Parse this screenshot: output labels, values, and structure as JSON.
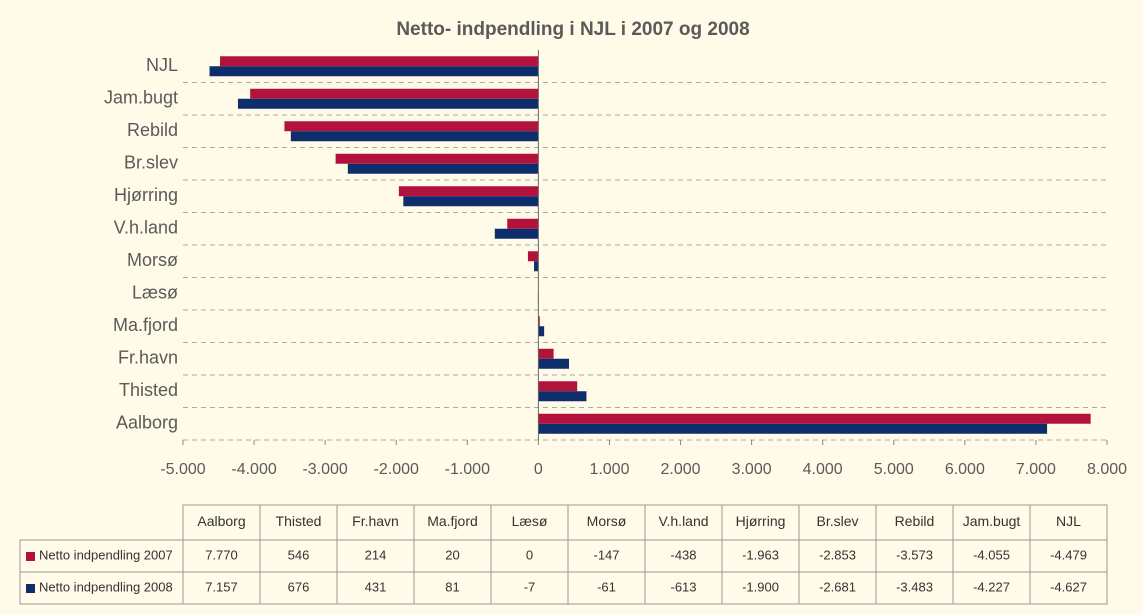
{
  "chart_data": {
    "type": "bar",
    "orientation": "horizontal",
    "title": "Netto- indpendling i NJL i 2007 og 2008",
    "categories": [
      "Aalborg",
      "Thisted",
      "Fr.havn",
      "Ma.fjord",
      "Læsø",
      "Morsø",
      "V.h.land",
      "Hjørring",
      "Br.slev",
      "Rebild",
      "Jam.bugt",
      "NJL"
    ],
    "series": [
      {
        "name": "Netto indpendling 2007",
        "color": "#b3123c",
        "values": [
          7770,
          546,
          214,
          20,
          0,
          -147,
          -438,
          -1963,
          -2853,
          -3573,
          -4055,
          -4479
        ],
        "value_labels": [
          "7.770",
          "546",
          "214",
          "20",
          "0",
          "-147",
          "-438",
          "-1.963",
          "-2.853",
          "-3.573",
          "-4.055",
          "-4.479"
        ]
      },
      {
        "name": "Netto indpendling 2008",
        "color": "#0d2d6b",
        "values": [
          7157,
          676,
          431,
          81,
          -7,
          -61,
          -613,
          -1900,
          -2681,
          -3483,
          -4227,
          -4627
        ],
        "value_labels": [
          "7.157",
          "676",
          "431",
          "81",
          "-7",
          "-61",
          "-613",
          "-1.900",
          "-2.681",
          "-3.483",
          "-4.227",
          "-4.627"
        ]
      }
    ],
    "xlim": [
      -5000,
      8000
    ],
    "xticks": [
      {
        "value": -5000,
        "label": "-5.000"
      },
      {
        "value": -4000,
        "label": "-4.000"
      },
      {
        "value": -3000,
        "label": "-3.000"
      },
      {
        "value": -2000,
        "label": "-2.000"
      },
      {
        "value": -1000,
        "label": "-1.000"
      },
      0,
      {
        "value": 1000,
        "label": "1.000"
      },
      {
        "value": 2000,
        "label": "2.000"
      },
      {
        "value": 3000,
        "label": "3.000"
      },
      {
        "value": 4000,
        "label": "4.000"
      },
      {
        "value": 5000,
        "label": "5.000"
      },
      {
        "value": 6000,
        "label": "6.000"
      },
      {
        "value": 7000,
        "label": "7.000"
      },
      {
        "value": 8000,
        "label": "8.000"
      }
    ],
    "grid": true,
    "data_table": true
  }
}
